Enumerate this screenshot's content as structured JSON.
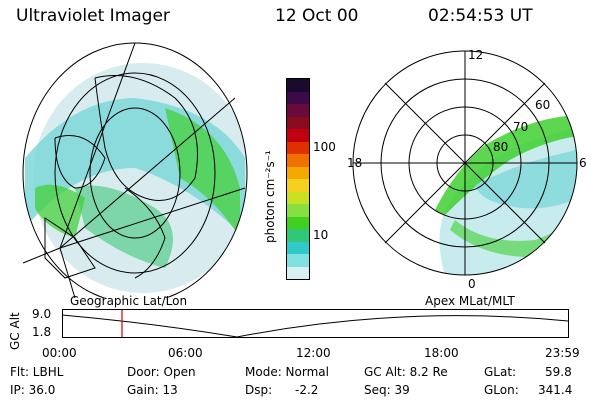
{
  "header": {
    "instrument": "Ultraviolet Imager",
    "date": "12 Oct 00",
    "time": "02:54:53 UT"
  },
  "left_panel": {
    "caption": "Geographic Lat/Lon"
  },
  "right_panel": {
    "caption": "Apex MLat/MLT",
    "mlt_labels": [
      "12",
      "18",
      "6",
      "0"
    ],
    "lat_labels": [
      "60",
      "70",
      "80"
    ]
  },
  "colorbar": {
    "unit_label": "photon cm⁻²s⁻¹",
    "tick_labels": [
      "100",
      "10"
    ],
    "colors": [
      "#1a0a2e",
      "#3a0a4a",
      "#6a0a3a",
      "#8a0a1e",
      "#c00010",
      "#e03000",
      "#f07000",
      "#f5a800",
      "#f5d020",
      "#c8e020",
      "#88e040",
      "#40d020",
      "#30c878",
      "#30c8c8",
      "#80e0e0",
      "#d8f0f0"
    ]
  },
  "timeline": {
    "axis_label": "GC Alt",
    "y_ticks": [
      "9.0",
      "1.8"
    ],
    "x_ticks": [
      "00:00",
      "06:00",
      "12:00",
      "18:00",
      "23:59"
    ],
    "current_time_marker_color": "#cc0000"
  },
  "info": {
    "flt": "Flt: LBHL",
    "ip": "IP: 36.0",
    "door": "Door: Open",
    "gain": "Gain: 13",
    "mode": "Mode: Normal",
    "dsp_label": "Dsp:",
    "dsp_value": "-2.2",
    "gc_alt": "GC Alt: 8.2 Re",
    "seq": "Seq: 39",
    "glat_label": "GLat:",
    "glat_value": "59.8",
    "glon_label": "GLon:",
    "glon_value": "341.4"
  }
}
